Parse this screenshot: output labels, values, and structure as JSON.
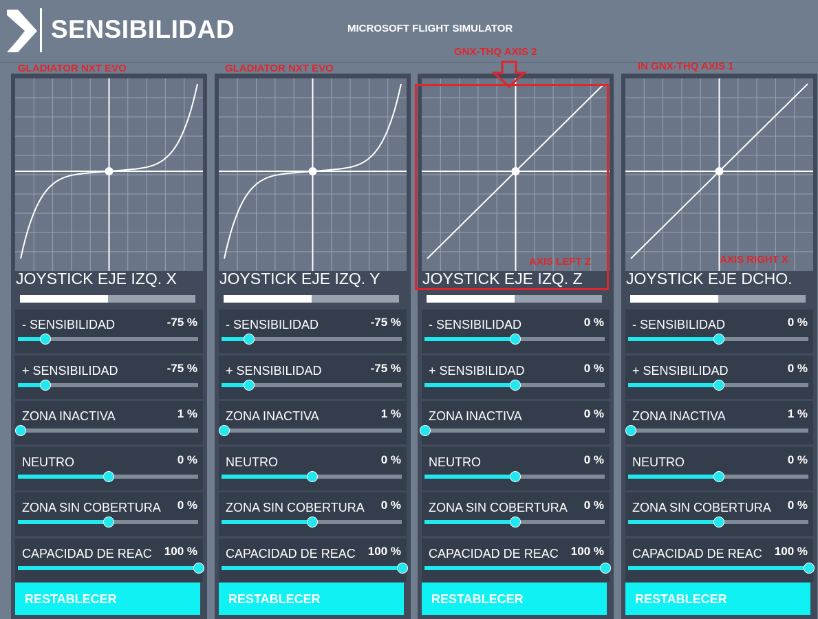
{
  "header": {
    "title": "SENSIBILIDAD",
    "subtitle": "MICROSOFT FLIGHT SIMULATOR",
    "logo_icon": "chevron-right-icon"
  },
  "annotations": {
    "panel1_device": "GLADIATOR NXT EVO",
    "panel2_device": "GLADIATOR NXT EVO",
    "panel3_device": "GNX-THQ AXIS 2",
    "panel3_axis": "AXIS LEFT Z",
    "panel4_device": "IN GNX-THQ AXIS 1",
    "panel4_axis": "AXIS RIGHT X",
    "arrow_icon": "arrow-down-icon",
    "color": "#e0262b"
  },
  "colors": {
    "accent": "#21e7ee",
    "panel_bg": "#404a5a",
    "row_bg": "#343d4b",
    "page_bg": "#6f7d8f"
  },
  "panels": [
    {
      "axis_name": "JOYSTICK EJE IZQ. X",
      "axis_position": 0.5,
      "curve": "cubic",
      "settings": [
        {
          "label": "- SENSIBILIDAD",
          "value": "-75 %",
          "level": 0.15
        },
        {
          "label": "+ SENSIBILIDAD",
          "value": "-75 %",
          "level": 0.15
        },
        {
          "label": "ZONA INACTIVA",
          "value": "1 %",
          "level": 0.01
        },
        {
          "label": "NEUTRO",
          "value": "0 %",
          "level": 0.5
        },
        {
          "label": "ZONA SIN COBERTURA",
          "value": "0 %",
          "level": 0.5
        },
        {
          "label": "CAPACIDAD DE REAC",
          "value": "100 %",
          "level": 1.0
        }
      ],
      "reset_label": "RESTABLECER"
    },
    {
      "axis_name": "JOYSTICK EJE IZQ. Y",
      "axis_position": 0.5,
      "curve": "cubic",
      "settings": [
        {
          "label": "- SENSIBILIDAD",
          "value": "-75 %",
          "level": 0.15
        },
        {
          "label": "+ SENSIBILIDAD",
          "value": "-75 %",
          "level": 0.15
        },
        {
          "label": "ZONA INACTIVA",
          "value": "1 %",
          "level": 0.01
        },
        {
          "label": "NEUTRO",
          "value": "0 %",
          "level": 0.5
        },
        {
          "label": "ZONA SIN COBERTURA",
          "value": "0 %",
          "level": 0.5
        },
        {
          "label": "CAPACIDAD DE REAC",
          "value": "100 %",
          "level": 1.0
        }
      ],
      "reset_label": "RESTABLECER"
    },
    {
      "axis_name": "JOYSTICK EJE IZQ. Z",
      "axis_position": 0.5,
      "curve": "linear",
      "settings": [
        {
          "label": "- SENSIBILIDAD",
          "value": "0 %",
          "level": 0.5
        },
        {
          "label": "+ SENSIBILIDAD",
          "value": "0 %",
          "level": 0.5
        },
        {
          "label": "ZONA INACTIVA",
          "value": "0 %",
          "level": 0.0
        },
        {
          "label": "NEUTRO",
          "value": "0 %",
          "level": 0.5
        },
        {
          "label": "ZONA SIN COBERTURA",
          "value": "0 %",
          "level": 0.5
        },
        {
          "label": "CAPACIDAD DE REAC",
          "value": "100 %",
          "level": 1.0
        }
      ],
      "reset_label": "RESTABLECER"
    },
    {
      "axis_name": "JOYSTICK EJE DCHO.",
      "axis_position": 0.5,
      "curve": "linear",
      "settings": [
        {
          "label": "- SENSIBILIDAD",
          "value": "0 %",
          "level": 0.5
        },
        {
          "label": "+ SENSIBILIDAD",
          "value": "0 %",
          "level": 0.5
        },
        {
          "label": "ZONA INACTIVA",
          "value": "1 %",
          "level": 0.01
        },
        {
          "label": "NEUTRO",
          "value": "0 %",
          "level": 0.5
        },
        {
          "label": "ZONA SIN COBERTURA",
          "value": "0 %",
          "level": 0.5
        },
        {
          "label": "CAPACIDAD DE REAC",
          "value": "100 %",
          "level": 1.0
        }
      ],
      "reset_label": "RESTABLECER"
    }
  ]
}
